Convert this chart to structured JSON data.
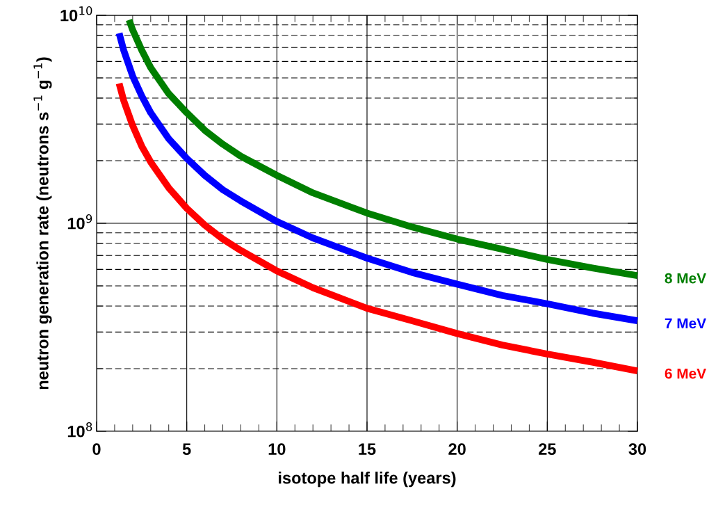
{
  "chart_data": {
    "type": "line",
    "xlabel": "isotope half life (years)",
    "ylabel": "neutron generation rate (neutrons s$^{−1}$ g$^{−1}$)",
    "log": "y",
    "xlim": [
      0,
      30
    ],
    "xticks": [
      0,
      5,
      10,
      15,
      20,
      25,
      30
    ],
    "ylim": [
      100000000,
      10000000000
    ],
    "yticks": [
      {
        "value": 100000000,
        "label": "10$^{8}$"
      },
      {
        "value": 1000000000,
        "label": "10$^{9}$"
      },
      {
        "value": 10000000000,
        "label": "10$^{10}$"
      }
    ],
    "grid": true,
    "legend": false,
    "marker": "none",
    "line_style": "solid",
    "series": [
      {
        "name": "8 MeV",
        "color": "#007f00",
        "x": [
          1.8,
          2,
          2.5,
          3,
          4,
          5,
          6,
          7,
          8,
          10,
          12,
          15,
          17.5,
          20,
          22.5,
          25,
          27.5,
          30
        ],
        "values": [
          9500000000,
          8500000000,
          6800000000,
          5600000000,
          4200000000,
          3400000000,
          2800000000,
          2400000000,
          2100000000,
          1700000000,
          1400000000,
          1120000000,
          960000000,
          840000000,
          750000000,
          670000000,
          610000000,
          560000000
        ]
      },
      {
        "name": "7 MeV",
        "color": "#0000ff",
        "x": [
          1.25,
          1.5,
          2,
          2.5,
          3,
          4,
          5,
          6,
          7,
          8,
          10,
          12,
          15,
          17.5,
          20,
          22.5,
          25,
          27.5,
          30
        ],
        "values": [
          8200000000,
          6800000000,
          5100000000,
          4100000000,
          3400000000,
          2550000000,
          2050000000,
          1700000000,
          1450000000,
          1280000000,
          1020000000,
          850000000,
          680000000,
          580000000,
          510000000,
          450000000,
          410000000,
          370000000,
          340000000
        ]
      },
      {
        "name": "6 MeV",
        "color": "#ff0000",
        "x": [
          1.25,
          1.5,
          2,
          2.5,
          3,
          4,
          5,
          6,
          7,
          8,
          10,
          12,
          15,
          17.5,
          20,
          22.5,
          25,
          27.5,
          30
        ],
        "values": [
          4700000000,
          3900000000,
          2950000000,
          2350000000,
          1970000000,
          1480000000,
          1180000000,
          980000000,
          840000000,
          740000000,
          590000000,
          490000000,
          390000000,
          340000000,
          295000000,
          260000000,
          235000000,
          215000000,
          195000000
        ]
      }
    ]
  }
}
